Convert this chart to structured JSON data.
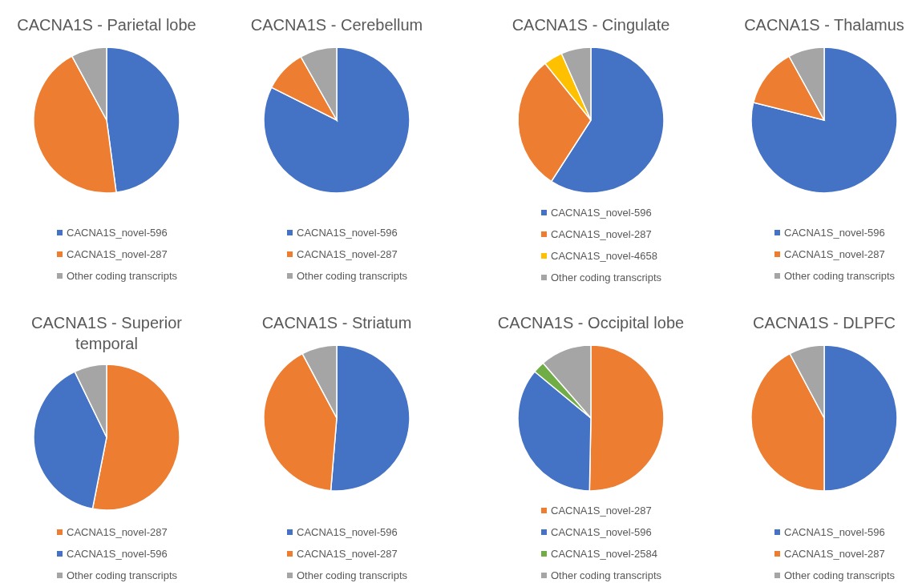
{
  "chart_data": [
    {
      "type": "pie",
      "title": "CACNA1S - Parietal lobe",
      "categories": [
        "CACNA1S_novel-596",
        "CACNA1S_novel-287",
        "Other coding transcripts"
      ],
      "values": [
        47.9,
        44.2,
        7.9
      ],
      "colors": [
        "#4472c4",
        "#ed7d31",
        "#a5a5a5"
      ],
      "legend": "bottom"
    },
    {
      "type": "pie",
      "title": "CACNA1S - Cerebellum",
      "categories": [
        "CACNA1S_novel-596",
        "CACNA1S_novel-287",
        "Other coding transcripts"
      ],
      "values": [
        82.4,
        9.4,
        8.2
      ],
      "colors": [
        "#4472c4",
        "#ed7d31",
        "#a5a5a5"
      ],
      "legend": "bottom"
    },
    {
      "type": "pie",
      "title": "CACNA1S - Cingulate",
      "categories": [
        "CACNA1S_novel-596",
        "CACNA1S_novel-287",
        "CACNA1S_novel-4658",
        "Other coding transcripts"
      ],
      "values": [
        59.1,
        30.1,
        4.2,
        6.6
      ],
      "colors": [
        "#4472c4",
        "#ed7d31",
        "#ffc000",
        "#a5a5a5"
      ],
      "legend": "bottom"
    },
    {
      "type": "pie",
      "title": "CACNA1S - Thalamus",
      "categories": [
        "CACNA1S_novel-596",
        "CACNA1S_novel-287",
        "Other coding transcripts"
      ],
      "values": [
        78.9,
        13.1,
        8
      ],
      "colors": [
        "#4472c4",
        "#ed7d31",
        "#a5a5a5"
      ],
      "legend": "bottom"
    },
    {
      "type": "pie",
      "title": "CACNA1S - Superior temporal",
      "categories": [
        "CACNA1S_novel-287",
        "CACNA1S_novel-596",
        "Other coding transcripts"
      ],
      "values": [
        53.1,
        39.7,
        7.2
      ],
      "colors": [
        "#ed7d31",
        "#4472c4",
        "#a5a5a5"
      ],
      "legend": "bottom"
    },
    {
      "type": "pie",
      "title": "CACNA1S - Striatum",
      "categories": [
        "CACNA1S_novel-596",
        "CACNA1S_novel-287",
        "Other coding transcripts"
      ],
      "values": [
        51.3,
        40.9,
        7.8
      ],
      "colors": [
        "#4472c4",
        "#ed7d31",
        "#a5a5a5"
      ],
      "legend": "bottom"
    },
    {
      "type": "pie",
      "title": "CACNA1S - Occipital lobe",
      "categories": [
        "CACNA1S_novel-287",
        "CACNA1S_novel-596",
        "CACNA1S_novel-2584",
        "Other coding transcripts"
      ],
      "values": [
        50.3,
        35.7,
        2.6,
        11.4
      ],
      "colors": [
        "#ed7d31",
        "#4472c4",
        "#70ad47",
        "#a5a5a5"
      ],
      "legend": "bottom"
    },
    {
      "type": "pie",
      "title": "CACNA1S - DLPFC",
      "categories": [
        "CACNA1S_novel-596",
        "CACNA1S_novel-287",
        "Other coding transcripts"
      ],
      "values": [
        50,
        42.2,
        7.8
      ],
      "colors": [
        "#4472c4",
        "#ed7d31",
        "#a5a5a5"
      ],
      "legend": "bottom"
    }
  ]
}
